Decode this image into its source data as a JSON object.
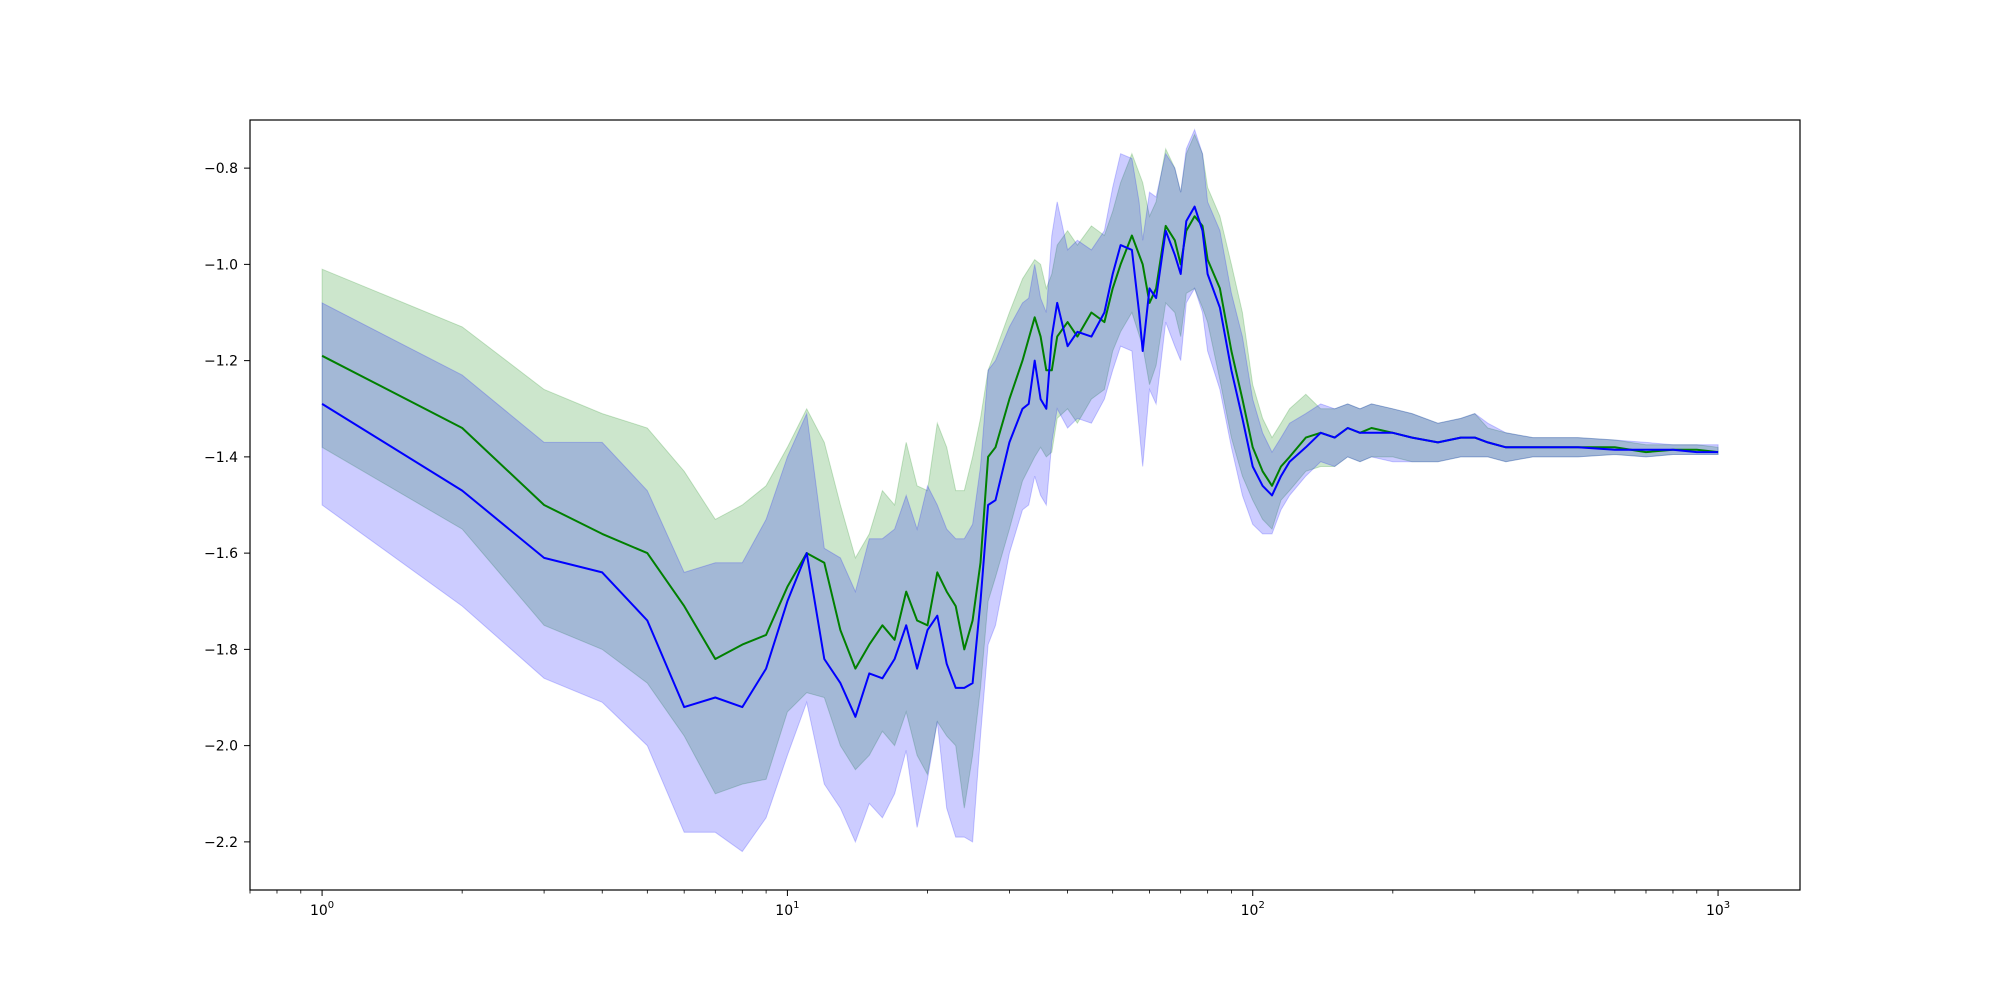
{
  "chart_data": {
    "type": "line",
    "title": "",
    "xlabel": "",
    "ylabel": "",
    "xscale": "log",
    "xlim": [
      0.7,
      1500
    ],
    "ylim": [
      -2.3,
      -0.7
    ],
    "grid": false,
    "legend": "none",
    "x_ticks": [
      {
        "base": "10",
        "exp": "0",
        "value": 1
      },
      {
        "base": "10",
        "exp": "1",
        "value": 10
      },
      {
        "base": "10",
        "exp": "2",
        "value": 100
      },
      {
        "base": "10",
        "exp": "3",
        "value": 1000
      }
    ],
    "y_ticks": [
      {
        "label": "−0.8",
        "value": -0.8
      },
      {
        "label": "−1.0",
        "value": -1.0
      },
      {
        "label": "−1.2",
        "value": -1.2
      },
      {
        "label": "−1.4",
        "value": -1.4
      },
      {
        "label": "−1.6",
        "value": -1.6
      },
      {
        "label": "−1.8",
        "value": -1.8
      },
      {
        "label": "−2.0",
        "value": -2.0
      },
      {
        "label": "−2.2",
        "value": -2.2
      }
    ],
    "series": [
      {
        "color": "#008000",
        "band_color": "#008000",
        "band_opacity": 0.2,
        "x": [
          1,
          2,
          3,
          4,
          5,
          6,
          7,
          8,
          9,
          10,
          11,
          12,
          13,
          14,
          15,
          16,
          17,
          18,
          19,
          20,
          21,
          22,
          23,
          24,
          25,
          26,
          27,
          28,
          30,
          32,
          34,
          35,
          36,
          37,
          38,
          40,
          42,
          45,
          48,
          50,
          52,
          55,
          58,
          60,
          62,
          65,
          68,
          70,
          72,
          75,
          78,
          80,
          85,
          90,
          95,
          100,
          105,
          110,
          115,
          120,
          130,
          140,
          150,
          160,
          170,
          180,
          200,
          220,
          250,
          280,
          300,
          320,
          350,
          400,
          450,
          500,
          600,
          700,
          800,
          900,
          1000
        ],
        "y": [
          -1.19,
          -1.34,
          -1.5,
          -1.56,
          -1.6,
          -1.71,
          -1.82,
          -1.79,
          -1.77,
          -1.67,
          -1.6,
          -1.62,
          -1.76,
          -1.84,
          -1.79,
          -1.75,
          -1.78,
          -1.68,
          -1.74,
          -1.75,
          -1.64,
          -1.68,
          -1.71,
          -1.8,
          -1.74,
          -1.62,
          -1.4,
          -1.38,
          -1.28,
          -1.2,
          -1.11,
          -1.15,
          -1.22,
          -1.22,
          -1.15,
          -1.12,
          -1.15,
          -1.1,
          -1.12,
          -1.05,
          -1.0,
          -0.94,
          -1.0,
          -1.08,
          -1.05,
          -0.92,
          -0.95,
          -1.0,
          -0.93,
          -0.9,
          -0.92,
          -0.99,
          -1.05,
          -1.18,
          -1.28,
          -1.38,
          -1.43,
          -1.46,
          -1.42,
          -1.4,
          -1.36,
          -1.35,
          -1.36,
          -1.34,
          -1.35,
          -1.34,
          -1.35,
          -1.36,
          -1.37,
          -1.36,
          -1.36,
          -1.37,
          -1.38,
          -1.38,
          -1.38,
          -1.38,
          -1.38,
          -1.39,
          -1.385,
          -1.385,
          -1.39
        ],
        "lower": [
          -1.38,
          -1.55,
          -1.75,
          -1.8,
          -1.87,
          -1.98,
          -2.1,
          -2.08,
          -2.07,
          -1.93,
          -1.89,
          -1.9,
          -2.0,
          -2.05,
          -2.02,
          -1.97,
          -2.0,
          -1.93,
          -2.02,
          -2.06,
          -1.95,
          -1.98,
          -2.0,
          -2.13,
          -2.02,
          -1.88,
          -1.7,
          -1.65,
          -1.55,
          -1.45,
          -1.4,
          -1.38,
          -1.4,
          -1.39,
          -1.32,
          -1.3,
          -1.33,
          -1.28,
          -1.26,
          -1.18,
          -1.14,
          -1.1,
          -1.17,
          -1.25,
          -1.21,
          -1.08,
          -1.1,
          -1.15,
          -1.06,
          -1.05,
          -1.09,
          -1.12,
          -1.24,
          -1.36,
          -1.44,
          -1.49,
          -1.53,
          -1.55,
          -1.49,
          -1.47,
          -1.43,
          -1.42,
          -1.42,
          -1.4,
          -1.41,
          -1.4,
          -1.4,
          -1.41,
          -1.41,
          -1.4,
          -1.4,
          -1.4,
          -1.41,
          -1.4,
          -1.4,
          -1.4,
          -1.395,
          -1.4,
          -1.395,
          -1.395,
          -1.395
        ],
        "upper": [
          -1.01,
          -1.13,
          -1.26,
          -1.31,
          -1.34,
          -1.43,
          -1.53,
          -1.5,
          -1.46,
          -1.38,
          -1.3,
          -1.37,
          -1.5,
          -1.61,
          -1.56,
          -1.47,
          -1.5,
          -1.37,
          -1.46,
          -1.47,
          -1.33,
          -1.38,
          -1.47,
          -1.47,
          -1.4,
          -1.32,
          -1.22,
          -1.18,
          -1.1,
          -1.03,
          -0.99,
          -1.0,
          -1.05,
          -1.02,
          -0.96,
          -0.93,
          -0.96,
          -0.92,
          -0.94,
          -0.89,
          -0.83,
          -0.77,
          -0.83,
          -0.9,
          -0.87,
          -0.76,
          -0.8,
          -0.85,
          -0.77,
          -0.73,
          -0.77,
          -0.84,
          -0.9,
          -1.0,
          -1.1,
          -1.25,
          -1.32,
          -1.36,
          -1.33,
          -1.3,
          -1.27,
          -1.3,
          -1.3,
          -1.29,
          -1.3,
          -1.29,
          -1.3,
          -1.31,
          -1.33,
          -1.32,
          -1.31,
          -1.34,
          -1.35,
          -1.36,
          -1.36,
          -1.36,
          -1.365,
          -1.375,
          -1.375,
          -1.375,
          -1.38
        ]
      },
      {
        "color": "#0000ff",
        "band_color": "#0000ff",
        "band_opacity": 0.2,
        "x": [
          1,
          2,
          3,
          4,
          5,
          6,
          7,
          8,
          9,
          10,
          11,
          12,
          13,
          14,
          15,
          16,
          17,
          18,
          19,
          20,
          21,
          22,
          23,
          24,
          25,
          26,
          27,
          28,
          30,
          32,
          33,
          34,
          35,
          36,
          37,
          38,
          40,
          42,
          45,
          48,
          50,
          52,
          55,
          57,
          58,
          60,
          62,
          65,
          68,
          70,
          72,
          75,
          78,
          80,
          85,
          90,
          95,
          100,
          105,
          110,
          115,
          120,
          130,
          140,
          150,
          160,
          170,
          180,
          200,
          220,
          250,
          280,
          300,
          320,
          350,
          400,
          450,
          500,
          600,
          700,
          800,
          900,
          1000
        ],
        "y": [
          -1.29,
          -1.47,
          -1.61,
          -1.64,
          -1.74,
          -1.92,
          -1.9,
          -1.92,
          -1.84,
          -1.7,
          -1.6,
          -1.82,
          -1.87,
          -1.94,
          -1.85,
          -1.86,
          -1.82,
          -1.75,
          -1.84,
          -1.76,
          -1.73,
          -1.83,
          -1.88,
          -1.88,
          -1.87,
          -1.7,
          -1.5,
          -1.49,
          -1.37,
          -1.3,
          -1.29,
          -1.2,
          -1.28,
          -1.3,
          -1.15,
          -1.08,
          -1.17,
          -1.14,
          -1.15,
          -1.1,
          -1.02,
          -0.96,
          -0.97,
          -1.1,
          -1.18,
          -1.05,
          -1.07,
          -0.93,
          -0.98,
          -1.02,
          -0.91,
          -0.88,
          -0.93,
          -1.02,
          -1.09,
          -1.22,
          -1.32,
          -1.42,
          -1.46,
          -1.48,
          -1.44,
          -1.41,
          -1.38,
          -1.35,
          -1.36,
          -1.34,
          -1.35,
          -1.35,
          -1.35,
          -1.36,
          -1.37,
          -1.36,
          -1.36,
          -1.37,
          -1.38,
          -1.38,
          -1.38,
          -1.38,
          -1.385,
          -1.385,
          -1.385,
          -1.39,
          -1.39
        ],
        "lower": [
          -1.5,
          -1.71,
          -1.86,
          -1.91,
          -2.0,
          -2.18,
          -2.18,
          -2.22,
          -2.15,
          -2.02,
          -1.91,
          -2.08,
          -2.13,
          -2.2,
          -2.12,
          -2.15,
          -2.1,
          -2.01,
          -2.17,
          -2.07,
          -1.95,
          -2.13,
          -2.19,
          -2.19,
          -2.2,
          -1.98,
          -1.79,
          -1.75,
          -1.6,
          -1.51,
          -1.5,
          -1.44,
          -1.48,
          -1.5,
          -1.37,
          -1.3,
          -1.34,
          -1.32,
          -1.33,
          -1.28,
          -1.22,
          -1.17,
          -1.18,
          -1.34,
          -1.42,
          -1.26,
          -1.29,
          -1.12,
          -1.17,
          -1.2,
          -1.08,
          -1.05,
          -1.1,
          -1.18,
          -1.26,
          -1.38,
          -1.48,
          -1.54,
          -1.56,
          -1.56,
          -1.51,
          -1.48,
          -1.44,
          -1.41,
          -1.42,
          -1.4,
          -1.41,
          -1.4,
          -1.41,
          -1.41,
          -1.41,
          -1.4,
          -1.4,
          -1.4,
          -1.41,
          -1.4,
          -1.4,
          -1.4,
          -1.395,
          -1.4,
          -1.395,
          -1.395,
          -1.395
        ],
        "upper": [
          -1.08,
          -1.23,
          -1.37,
          -1.37,
          -1.47,
          -1.64,
          -1.62,
          -1.62,
          -1.53,
          -1.4,
          -1.31,
          -1.59,
          -1.61,
          -1.68,
          -1.57,
          -1.57,
          -1.55,
          -1.48,
          -1.55,
          -1.46,
          -1.5,
          -1.55,
          -1.57,
          -1.57,
          -1.54,
          -1.42,
          -1.22,
          -1.2,
          -1.13,
          -1.08,
          -1.07,
          -1.0,
          -1.07,
          -1.1,
          -0.94,
          -0.87,
          -0.97,
          -0.95,
          -0.97,
          -0.93,
          -0.84,
          -0.77,
          -0.78,
          -0.87,
          -0.95,
          -0.85,
          -0.86,
          -0.77,
          -0.8,
          -0.85,
          -0.76,
          -0.72,
          -0.77,
          -0.87,
          -0.93,
          -1.06,
          -1.15,
          -1.28,
          -1.35,
          -1.39,
          -1.36,
          -1.33,
          -1.31,
          -1.29,
          -1.3,
          -1.29,
          -1.3,
          -1.29,
          -1.3,
          -1.31,
          -1.33,
          -1.32,
          -1.31,
          -1.33,
          -1.35,
          -1.36,
          -1.36,
          -1.36,
          -1.365,
          -1.37,
          -1.375,
          -1.375,
          -1.375
        ]
      }
    ]
  }
}
